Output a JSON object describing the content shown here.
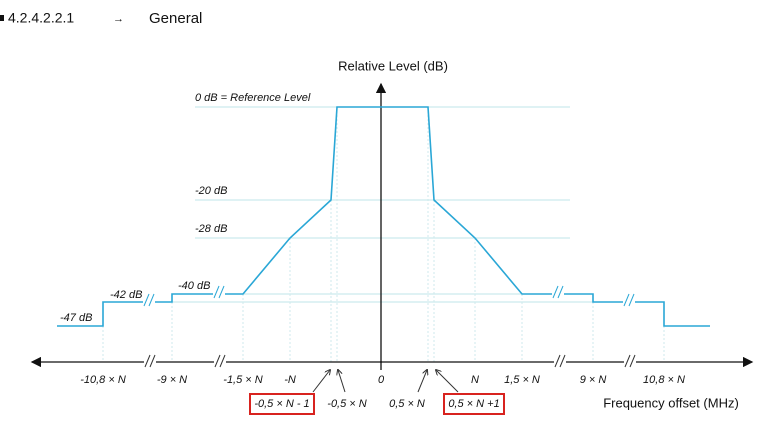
{
  "header": {
    "number": "4.2.4.2.2.1",
    "arrow": "→",
    "title": "General"
  },
  "diagram": {
    "y_axis_title": "Relative Level (dB)",
    "x_axis_title": "Frequency offset (MHz)",
    "level_labels": [
      "0 dB = Reference Level",
      "-20 dB",
      "-28 dB",
      "-40 dB",
      "-42 dB",
      "-47 dB"
    ],
    "x_labels": [
      "-10,8 × N",
      "-9 × N",
      "-1,5 × N",
      "-N",
      "0",
      "N",
      "1,5 × N",
      "9 × N",
      "10,8 × N"
    ],
    "edge_labels": [
      "-0,5 × N - 1",
      "-0,5 × N",
      "0,5 × N",
      "0,5 × N +1"
    ]
  }
}
